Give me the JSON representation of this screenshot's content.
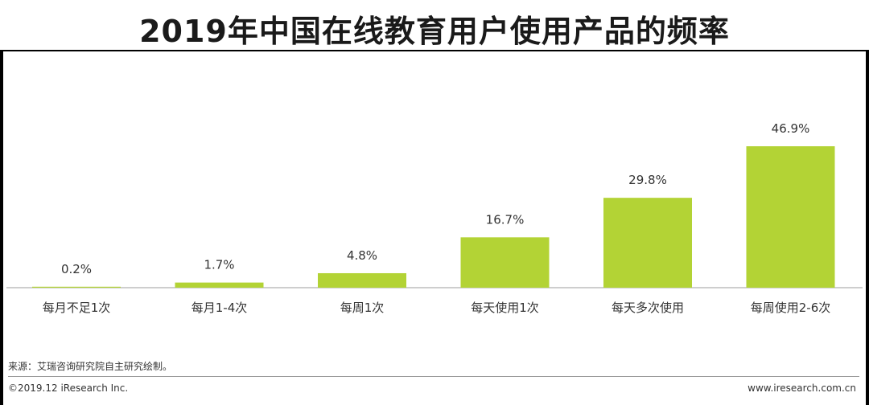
{
  "title": "2019年中国在线教育用户使用产品的频率",
  "source": "来源：艾瑞咨询研究院自主研究绘制。",
  "copyright": "©2019.12 iResearch Inc.",
  "website": "www.iresearch.com.cn",
  "colors": {
    "bar": "#b3d335",
    "axis": "#9e9e9e",
    "text": "#333333"
  },
  "chart_data": {
    "type": "bar",
    "categories": [
      "每月不足1次",
      "每月1-4次",
      "每周1次",
      "每天使用1次",
      "每天多次使用",
      "每周使用2-6次"
    ],
    "values": [
      0.2,
      1.7,
      4.8,
      16.7,
      29.8,
      46.9
    ],
    "data_labels": [
      "0.2%",
      "1.7%",
      "4.8%",
      "16.7%",
      "29.8%",
      "46.9%"
    ],
    "ylim": [
      0,
      50
    ],
    "unit": "%",
    "grid": false,
    "legend": "none"
  }
}
